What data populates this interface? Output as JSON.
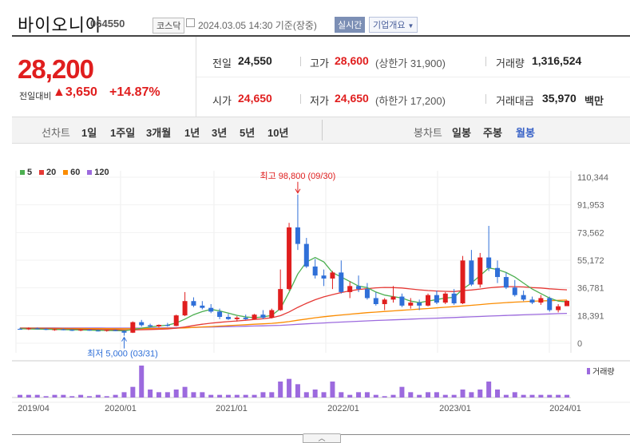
{
  "header": {
    "name": "바이오니아",
    "code": "064550",
    "market": "코스닥",
    "datetime": "2024.03.05 14:30 기준(장중)",
    "realtime_label": "실시간",
    "company_info_label": "기업개요"
  },
  "price": {
    "current": "28,200",
    "change_label": "전일대비",
    "change_value": "▲3,650",
    "change_pct": "+14.87%"
  },
  "stats": {
    "prev_close": {
      "label": "전일",
      "value": "24,550"
    },
    "high": {
      "label": "고가",
      "value": "28,600",
      "sub": "(상한가 31,900)"
    },
    "volume": {
      "label": "거래량",
      "value": "1,316,524"
    },
    "open": {
      "label": "시가",
      "value": "24,650"
    },
    "low": {
      "label": "저가",
      "value": "24,650",
      "sub": "(하한가 17,200)"
    },
    "amount": {
      "label": "거래대금",
      "value": "35,970",
      "unit": "백만"
    }
  },
  "tabs": {
    "line_chart_label": "선차트",
    "periods": [
      "1일",
      "1주일",
      "3개월",
      "1년",
      "3년",
      "5년",
      "10년"
    ],
    "candle_chart_label": "봉차트",
    "candle_periods": [
      "일봉",
      "주봉",
      "월봉"
    ],
    "active_candle": "월봉"
  },
  "legend": [
    {
      "label": "5",
      "color": "#4caf50"
    },
    {
      "label": "20",
      "color": "#e53935"
    },
    {
      "label": "60",
      "color": "#fb8c00"
    },
    {
      "label": "120",
      "color": "#9c6ade"
    }
  ],
  "chart_data": {
    "type": "candlestick",
    "y_ticks": [
      "110,344",
      "91,953",
      "73,562",
      "55,172",
      "36,781",
      "18,391",
      "0"
    ],
    "ylim": [
      0,
      110344
    ],
    "x_ticks": [
      "2019/04",
      "2020/01",
      "2021/01",
      "2022/01",
      "2023/01",
      "2024/01"
    ],
    "annotations": {
      "high_label": "최고 98,800 (09/30)",
      "low_label": "최저 5,000 (03/31)"
    },
    "volume_label": "거래량",
    "colors": {
      "up": "#e01e1e",
      "down": "#2f6fd8"
    },
    "candles_ohlc": [
      [
        9500,
        10200,
        9000,
        9300
      ],
      [
        9300,
        10500,
        8800,
        9900
      ],
      [
        9900,
        10400,
        9200,
        9500
      ],
      [
        9500,
        10000,
        8700,
        8900
      ],
      [
        8900,
        9600,
        8300,
        9200
      ],
      [
        9200,
        9800,
        8600,
        8800
      ],
      [
        8800,
        9300,
        8100,
        8500
      ],
      [
        8500,
        9200,
        8000,
        8900
      ],
      [
        8900,
        9400,
        8200,
        8400
      ],
      [
        8400,
        9000,
        7800,
        8200
      ],
      [
        8200,
        8900,
        7700,
        8700
      ],
      [
        8700,
        9300,
        8000,
        8100
      ],
      [
        8100,
        8500,
        5000,
        7000
      ],
      [
        7000,
        14500,
        6800,
        14000
      ],
      [
        14000,
        15500,
        11000,
        12000
      ],
      [
        12000,
        13000,
        10800,
        11200
      ],
      [
        11200,
        12500,
        10500,
        12200
      ],
      [
        12200,
        13500,
        11000,
        11500
      ],
      [
        11500,
        19000,
        11300,
        18500
      ],
      [
        18500,
        34000,
        18000,
        28000
      ],
      [
        28000,
        30500,
        24000,
        25000
      ],
      [
        25000,
        28000,
        22500,
        23500
      ],
      [
        23500,
        26000,
        20000,
        21000
      ],
      [
        21000,
        23000,
        16000,
        17500
      ],
      [
        17500,
        19500,
        15500,
        16000
      ],
      [
        16000,
        18000,
        14500,
        17000
      ],
      [
        17000,
        19000,
        15500,
        16000
      ],
      [
        16000,
        19500,
        15800,
        19000
      ],
      [
        19000,
        22000,
        16000,
        17000
      ],
      [
        17000,
        23000,
        16500,
        22000
      ],
      [
        22000,
        49000,
        21500,
        36000
      ],
      [
        36000,
        80000,
        35000,
        77000
      ],
      [
        77000,
        98800,
        62000,
        66000
      ],
      [
        66000,
        70000,
        50000,
        51000
      ],
      [
        51000,
        56000,
        43000,
        45000
      ],
      [
        45000,
        49000,
        38000,
        43000
      ],
      [
        43000,
        48000,
        36000,
        47000
      ],
      [
        47000,
        55000,
        33000,
        34000
      ],
      [
        34000,
        41000,
        30000,
        38000
      ],
      [
        38000,
        45000,
        34000,
        36000
      ],
      [
        36000,
        40000,
        29000,
        30000
      ],
      [
        30000,
        34000,
        25000,
        26000
      ],
      [
        26000,
        30000,
        22000,
        29000
      ],
      [
        29000,
        38000,
        27000,
        31000
      ],
      [
        31000,
        33000,
        24000,
        25000
      ],
      [
        25000,
        30000,
        23000,
        27000
      ],
      [
        27000,
        29000,
        22000,
        25000
      ],
      [
        25000,
        33000,
        24500,
        32000
      ],
      [
        32000,
        35000,
        26000,
        27000
      ],
      [
        27000,
        34000,
        26000,
        33000
      ],
      [
        33000,
        36000,
        25500,
        26500
      ],
      [
        26500,
        58000,
        26000,
        55000
      ],
      [
        55000,
        62000,
        38000,
        39000
      ],
      [
        39000,
        60000,
        37000,
        57000
      ],
      [
        57000,
        78000,
        48000,
        50000
      ],
      [
        50000,
        55000,
        40000,
        44000
      ],
      [
        44000,
        47000,
        36000,
        37000
      ],
      [
        37000,
        42000,
        31000,
        32000
      ],
      [
        32000,
        35000,
        28000,
        29000
      ],
      [
        29000,
        31000,
        26000,
        27000
      ],
      [
        27000,
        32000,
        25500,
        30000
      ],
      [
        30000,
        31000,
        21000,
        22000
      ],
      [
        22000,
        26000,
        20500,
        24550
      ],
      [
        24650,
        28600,
        24650,
        28200
      ]
    ],
    "ma5": [
      9600,
      9500,
      9400,
      9300,
      9200,
      9000,
      8900,
      8800,
      8700,
      8600,
      8500,
      8400,
      8300,
      9000,
      10000,
      10800,
      11500,
      12000,
      13500,
      16000,
      19000,
      21000,
      22500,
      21500,
      20000,
      18500,
      17500,
      17000,
      17500,
      18500,
      23000,
      34000,
      46000,
      54000,
      57000,
      54000,
      47000,
      44000,
      41000,
      38000,
      37000,
      34000,
      32000,
      31000,
      30000,
      28000,
      27000,
      28000,
      29000,
      30000,
      30500,
      36000,
      40000,
      45000,
      50000,
      49000,
      47000,
      44000,
      40000,
      36000,
      33000,
      30000,
      28000,
      27500
    ],
    "ma20": [
      9800,
      9750,
      9700,
      9600,
      9550,
      9450,
      9400,
      9300,
      9200,
      9100,
      9000,
      8900,
      8800,
      8800,
      8950,
      9100,
      9300,
      9500,
      10000,
      10800,
      11800,
      12600,
      13300,
      13900,
      14400,
      14800,
      15300,
      15800,
      16300,
      16900,
      18300,
      20800,
      23800,
      26500,
      28900,
      30800,
      32300,
      33700,
      34800,
      35700,
      36300,
      36800,
      37100,
      37000,
      36700,
      36100,
      35500,
      35000,
      34700,
      34500,
      34300,
      35000,
      35400,
      36000,
      36800,
      37300,
      37600,
      37600,
      37400,
      37000,
      36700,
      36200,
      35800,
      35500
    ],
    "ma60": [
      10000,
      9980,
      9950,
      9920,
      9890,
      9860,
      9830,
      9800,
      9770,
      9740,
      9710,
      9680,
      9650,
      9650,
      9700,
      9760,
      9830,
      9900,
      10000,
      10200,
      10500,
      10800,
      11100,
      11400,
      11700,
      12000,
      12300,
      12600,
      12900,
      13200,
      13700,
      14400,
      15300,
      16100,
      16900,
      17600,
      18200,
      18800,
      19300,
      19800,
      20300,
      20700,
      21100,
      21500,
      21900,
      22300,
      22700,
      23100,
      23500,
      23900,
      24300,
      24800,
      25200,
      25700,
      26200,
      26600,
      27000,
      27300,
      27600,
      27900,
      28100,
      28300,
      28500,
      28700
    ],
    "ma120": [
      10200,
      10190,
      10180,
      10170,
      10160,
      10150,
      10140,
      10130,
      10120,
      10110,
      10100,
      10090,
      10080,
      10080,
      10100,
      10150,
      10200,
      10260,
      10330,
      10420,
      10530,
      10650,
      10780,
      10900,
      11030,
      11160,
      11300,
      11440,
      11580,
      11720,
      11900,
      12200,
      12550,
      12880,
      13200,
      13500,
      13800,
      14080,
      14350,
      14600,
      14860,
      15100,
      15340,
      15560,
      15780,
      16000,
      16220,
      16440,
      16660,
      16880,
      17100,
      17330,
      17560,
      17790,
      18020,
      18250,
      18470,
      18690,
      18900,
      19100,
      19290,
      19480,
      19670,
      19850
    ],
    "volume": [
      1,
      1,
      1,
      0.5,
      1,
      1,
      0.5,
      1,
      0.5,
      1,
      0.5,
      1,
      2,
      4,
      12,
      3,
      2,
      2,
      3,
      4,
      2,
      2,
      1,
      1,
      1,
      1,
      1,
      1,
      2,
      2,
      6,
      7,
      5,
      2,
      3,
      2,
      6,
      2,
      1,
      2,
      2,
      1,
      0.5,
      1,
      4,
      2,
      1,
      2,
      2,
      1,
      1,
      3,
      2,
      3,
      6,
      3,
      1,
      2,
      1,
      1,
      1,
      1,
      1,
      1
    ]
  }
}
